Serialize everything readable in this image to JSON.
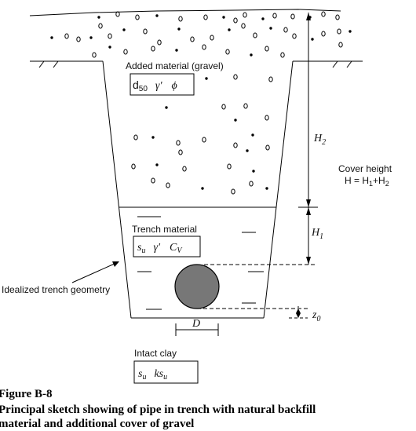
{
  "labels": {
    "added_material": "Added material (gravel)",
    "added_params": {
      "d": "d",
      "d_sub": "50",
      "gamma": "γ'",
      "phi": "ϕ"
    },
    "h2": {
      "main": "H",
      "sub": "2"
    },
    "cover_height": "Cover height",
    "cover_formula": {
      "a": "H = H",
      "a_sub": "1",
      "b": "+H",
      "b_sub": "2"
    },
    "trench_material": "Trench material",
    "trench_params": {
      "s": "s",
      "s_sub": "u",
      "gamma": "γ'",
      "c": "C",
      "c_sub": "V"
    },
    "h1": {
      "main": "H",
      "sub": "1"
    },
    "idealized": "Idealized trench geometry",
    "z0": {
      "main": "z",
      "sub": "0"
    },
    "d": "D",
    "intact_clay": "Intact clay",
    "intact_params": {
      "s": "s",
      "s_sub": "u",
      "k": "ks",
      "k_sub": "u"
    }
  },
  "caption": {
    "title": "Figure B-8",
    "text": "Principal sketch showing of pipe in trench with natural backfill",
    "text2": "material and additional cover of gravel"
  },
  "colors": {
    "pipe_fill": "#777777",
    "line": "#000000"
  }
}
